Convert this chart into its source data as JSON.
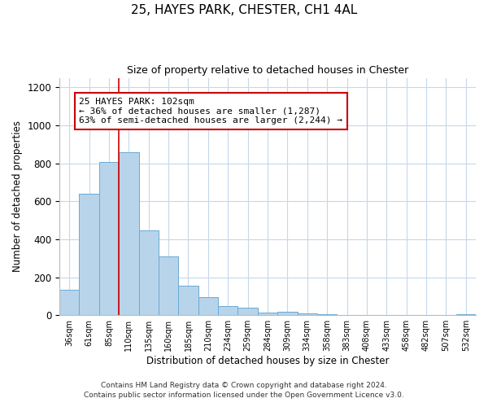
{
  "title1": "25, HAYES PARK, CHESTER, CH1 4AL",
  "title2": "Size of property relative to detached houses in Chester",
  "xlabel": "Distribution of detached houses by size in Chester",
  "ylabel": "Number of detached properties",
  "bin_labels": [
    "36sqm",
    "61sqm",
    "85sqm",
    "110sqm",
    "135sqm",
    "160sqm",
    "185sqm",
    "210sqm",
    "234sqm",
    "259sqm",
    "284sqm",
    "309sqm",
    "334sqm",
    "358sqm",
    "383sqm",
    "408sqm",
    "433sqm",
    "458sqm",
    "482sqm",
    "507sqm",
    "532sqm"
  ],
  "bar_heights": [
    135,
    640,
    805,
    860,
    445,
    310,
    155,
    95,
    50,
    40,
    15,
    20,
    10,
    5,
    2,
    2,
    0,
    0,
    0,
    0,
    5
  ],
  "bar_color": "#b8d4ea",
  "bar_edge_color": "#6aaad4",
  "vline_x": 3.0,
  "vline_color": "#cc0000",
  "annotation_title": "25 HAYES PARK: 102sqm",
  "annotation_line1": "← 36% of detached houses are smaller (1,287)",
  "annotation_line2": "63% of semi-detached houses are larger (2,244) →",
  "annotation_box_edge": "#cc0000",
  "ylim": [
    0,
    1250
  ],
  "yticks": [
    0,
    200,
    400,
    600,
    800,
    1000,
    1200
  ],
  "footnote1": "Contains HM Land Registry data © Crown copyright and database right 2024.",
  "footnote2": "Contains public sector information licensed under the Open Government Licence v3.0."
}
